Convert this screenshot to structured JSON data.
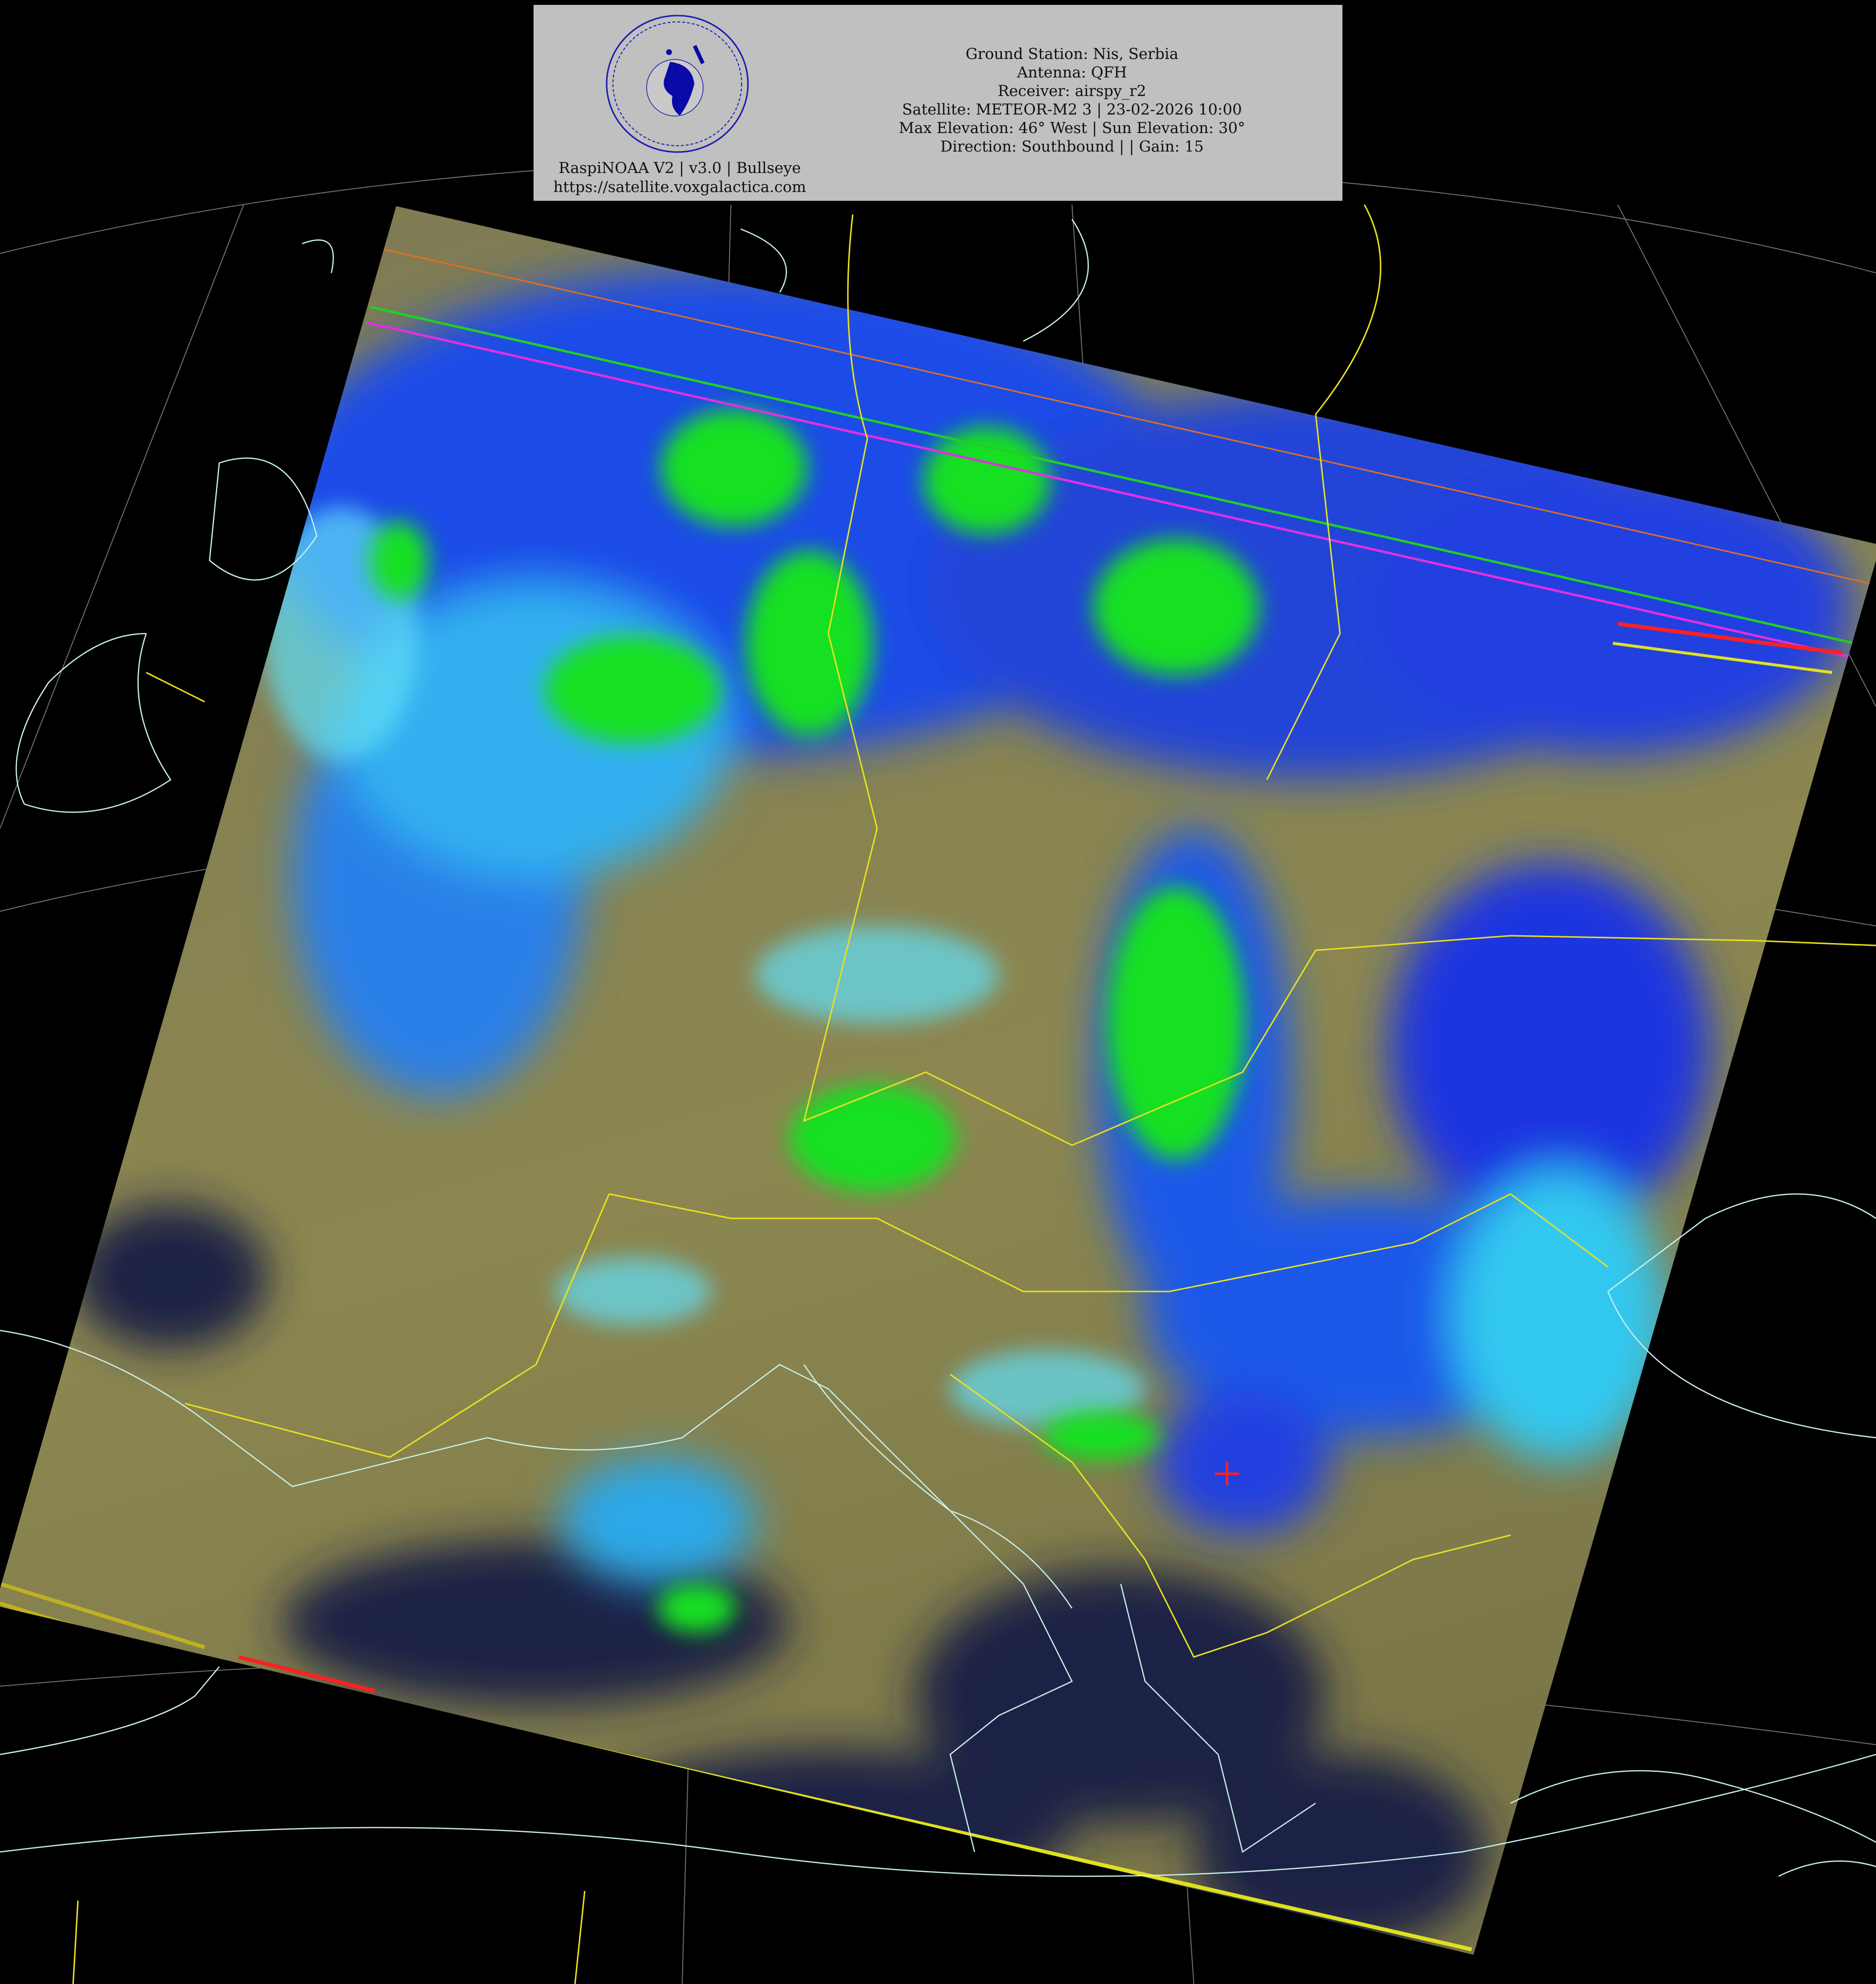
{
  "header": {
    "logo": {
      "ring_text_top": "Mihajlo's Satellite Receiver",
      "ring_text_middle": "SAPERE AUDE",
      "ring_text_bottom": "voxgalactica.com"
    },
    "software": "RaspiNOAA V2 | v3.0 | Bullseye",
    "website": "https://satellite.voxgalactica.com",
    "lines": [
      "Ground Station: Nis, Serbia",
      "Antenna: QFH",
      "Receiver: airspy_r2",
      "Satellite: METEOR-M2 3 | 23-02-2026 10:00",
      "Max Elevation: 46° West | Sun Elevation: 30°",
      "Direction: Southbound | | Gain: 15"
    ]
  },
  "image": {
    "type": "satellite false-color composite over Europe",
    "colors": {
      "background": "#000000",
      "land_clear": "#8c8750",
      "sea": "#1c2044",
      "cloud_low": "#3ad0f0",
      "cloud_mid": "#1030e8",
      "cloud_high": "#10e020",
      "borders": "#e8e020",
      "coastlines": "#c8f0e8",
      "graticule": "#9a9a9a",
      "station_marker": "#ff2020"
    },
    "overlays": [
      "coastlines",
      "country-borders",
      "lat-lon-graticule",
      "ground-station-marker"
    ]
  }
}
